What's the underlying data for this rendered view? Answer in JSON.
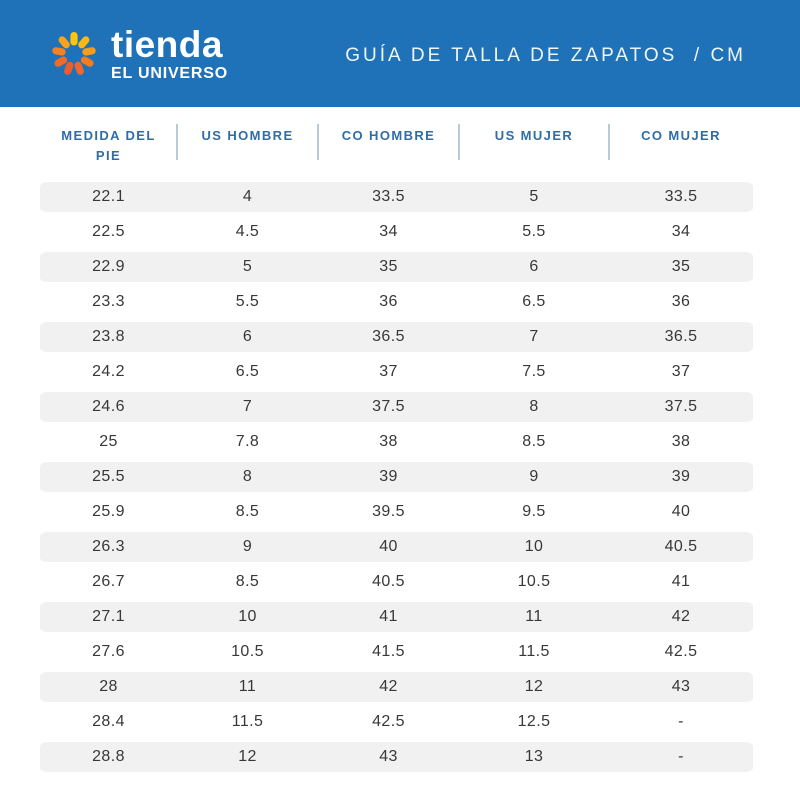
{
  "brand": {
    "line1": "tienda",
    "line2": "EL UNIVERSO"
  },
  "logo": {
    "petal_colors": [
      "#FFC50A",
      "#FDB813",
      "#F89C1C",
      "#F47B20",
      "#F1662A",
      "#EE5B2E",
      "#F16A26",
      "#F58220",
      "#FAA21B"
    ]
  },
  "header": {
    "title": "GUÍA DE TALLA DE ZAPATOS  / CM",
    "bg_color": "#1F72B8",
    "title_color": "#EFF6FB"
  },
  "table": {
    "columns": [
      "MEDIDA DEL\nPIE",
      "US HOMBRE",
      "CO HOMBRE",
      "US MUJER",
      "CO MUJER"
    ],
    "rows": [
      [
        "22.1",
        "4",
        "33.5",
        "5",
        "33.5"
      ],
      [
        "22.5",
        "4.5",
        "34",
        "5.5",
        "34"
      ],
      [
        "22.9",
        "5",
        "35",
        "6",
        "35"
      ],
      [
        "23.3",
        "5.5",
        "36",
        "6.5",
        "36"
      ],
      [
        "23.8",
        "6",
        "36.5",
        "7",
        "36.5"
      ],
      [
        "24.2",
        "6.5",
        "37",
        "7.5",
        "37"
      ],
      [
        "24.6",
        "7",
        "37.5",
        "8",
        "37.5"
      ],
      [
        "25",
        "7.8",
        "38",
        "8.5",
        "38"
      ],
      [
        "25.5",
        "8",
        "39",
        "9",
        "39"
      ],
      [
        "25.9",
        "8.5",
        "39.5",
        "9.5",
        "40"
      ],
      [
        "26.3",
        "9",
        "40",
        "10",
        "40.5"
      ],
      [
        "26.7",
        "8.5",
        "40.5",
        "10.5",
        "41"
      ],
      [
        "27.1",
        "10",
        "41",
        "11",
        "42"
      ],
      [
        "27.6",
        "10.5",
        "41.5",
        "11.5",
        "42.5"
      ],
      [
        "28",
        "11",
        "42",
        "12",
        "43"
      ],
      [
        "28.4",
        "11.5",
        "42.5",
        "12.5",
        "-"
      ],
      [
        "28.8",
        "12",
        "43",
        "13",
        "-"
      ]
    ],
    "stripe_color": "#F1F1F1",
    "header_text_color": "#2F6DA6",
    "divider_color": "#B9C9D9",
    "cell_text_color": "#383838"
  }
}
